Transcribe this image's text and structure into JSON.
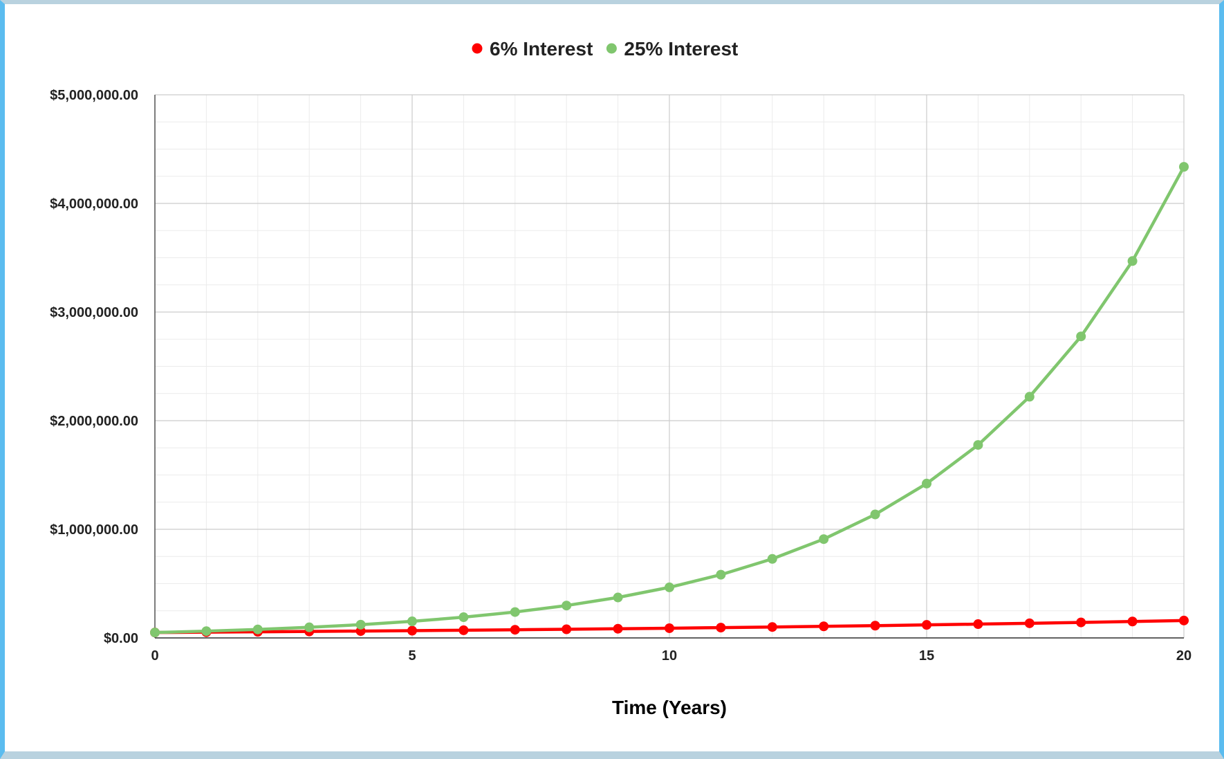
{
  "chart_data": {
    "type": "line",
    "xlabel": "Time (Years)",
    "ylabel": "",
    "xlim": [
      0,
      20
    ],
    "ylim": [
      0,
      5000000
    ],
    "x_ticks": [
      0,
      5,
      10,
      15,
      20
    ],
    "x_tick_labels": [
      "0",
      "5",
      "10",
      "15",
      "20"
    ],
    "y_ticks": [
      0,
      1000000,
      2000000,
      3000000,
      4000000,
      5000000
    ],
    "y_tick_labels": [
      "$0.00",
      "$1,000,000.00",
      "$2,000,000.00",
      "$3,000,000.00",
      "$4,000,000.00",
      "$5,000,000.00"
    ],
    "grid": true,
    "legend_position": "top-center",
    "x": [
      0,
      1,
      2,
      3,
      4,
      5,
      6,
      7,
      8,
      9,
      10,
      11,
      12,
      13,
      14,
      15,
      16,
      17,
      18,
      19,
      20
    ],
    "series": [
      {
        "name": "6% Interest",
        "color": "#ff0000",
        "values": [
          50000,
          53000,
          56180,
          59551,
          63124,
          66911,
          70926,
          75182,
          79692,
          84474,
          89542,
          94915,
          100610,
          106646,
          113045,
          119828,
          127018,
          134639,
          142717,
          151280,
          160357
        ]
      },
      {
        "name": "25% Interest",
        "color": "#80c66e",
        "values": [
          50000,
          62500,
          78125,
          97656,
          122070,
          152588,
          190735,
          238419,
          298023,
          372529,
          465661,
          582077,
          727596,
          909495,
          1136868,
          1421085,
          1776357,
          2220446,
          2775558,
          3469447,
          4336809
        ]
      }
    ]
  }
}
